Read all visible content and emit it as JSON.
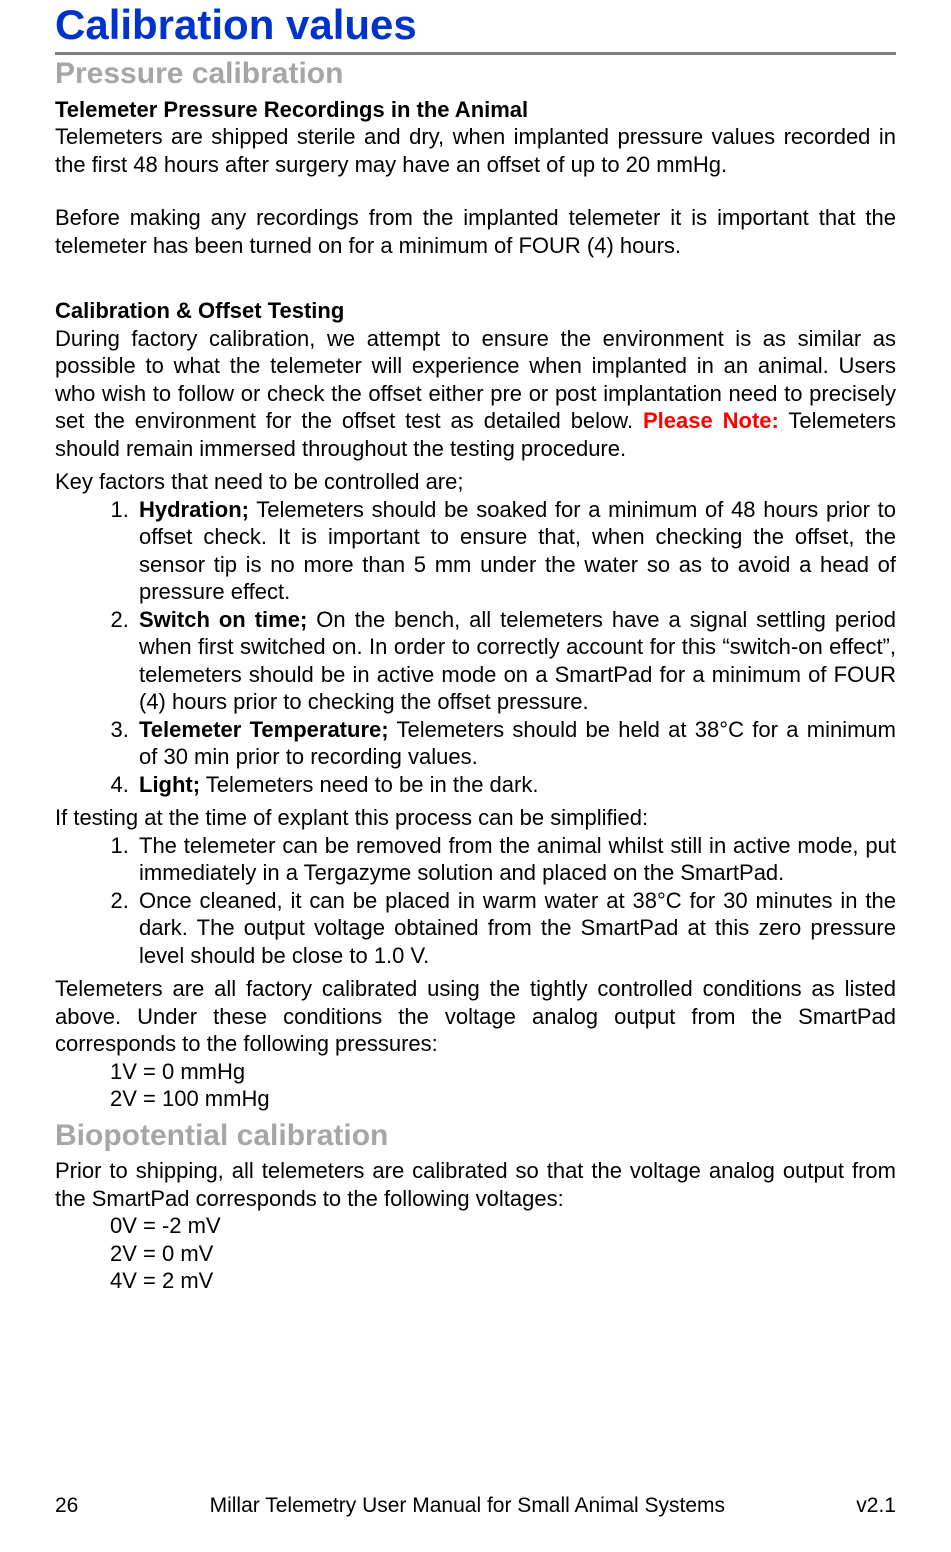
{
  "colors": {
    "title": "#0033cc",
    "subheading": "#a6a6a6",
    "rule": "#808080",
    "note": "#ff0000",
    "text": "#000000",
    "background": "#ffffff"
  },
  "typography": {
    "family": "Arial",
    "h1_size_pt": 32,
    "h2_size_pt": 22,
    "h3_size_pt": 16,
    "body_size_pt": 16
  },
  "h1": "Calibration values",
  "sections": {
    "pressure": {
      "heading": "Pressure calibration",
      "sub1_title": "Telemeter Pressure Recordings in the Animal",
      "sub1_p1": "Telemeters are shipped sterile and dry, when implanted pressure values recorded in the first 48 hours after surgery may have an offset of up to 20 mmHg.",
      "sub1_p2": "Before making any recordings from the implanted telemeter it is important that the telemeter has been turned on for a minimum of FOUR (4) hours.",
      "sub2_title": "Calibration & Offset Testing",
      "sub2_p1a": "During factory calibration, we attempt to ensure the environment is as similar as possible to what the telemeter will experience when implanted in an animal.  Users who wish to follow or check the offset either pre or post implantation need to precisely set the environment for the offset test as detailed below.  ",
      "sub2_note": "Please Note:",
      "sub2_p1b": " Telemeters should remain immersed throughout the testing procedure.",
      "key_factors_intro": "Key factors that need to be controlled are;",
      "key_factors": [
        {
          "label": "Hydration;",
          "text": "  Telemeters should be soaked for a minimum of 48 hours prior to offset check.  It is important to ensure that, when checking the offset, the sensor tip is no more than 5 mm under the water so as to avoid a head of pressure effect."
        },
        {
          "label": "Switch on time;",
          "text": "  On the bench, all telemeters have a signal settling period when first switched on.  In order to correctly account for this “switch-on effect”, telemeters should be in active mode on a SmartPad for a minimum of FOUR (4) hours prior to checking the offset pressure."
        },
        {
          "label": "Telemeter Temperature;",
          "text": "  Telemeters should be held at 38°C for a minimum of 30 min prior to recording values."
        },
        {
          "label": "Light;",
          "text": "  Telemeters need to be in the dark."
        }
      ],
      "explant_intro": "If testing at the time of explant this process can be simplified:",
      "explant_steps": [
        "The telemeter can be removed from the animal whilst still in active mode, put immediately in a Tergazyme solution and placed on the SmartPad.",
        "Once cleaned, it can be placed in warm water at 38°C for 30 minutes in the dark.  The output voltage obtained from the SmartPad at this zero pressure level should be close to 1.0 V."
      ],
      "factory_p": "Telemeters are all factory calibrated using the tightly controlled conditions as listed above.  Under these conditions the voltage analog output from the SmartPad corresponds to the following pressures:",
      "voltage_map": [
        "1V = 0 mmHg",
        "2V = 100 mmHg"
      ]
    },
    "bio": {
      "heading": "Biopotential calibration",
      "p1": "Prior to shipping, all telemeters are calibrated so that the voltage analog output from the SmartPad corresponds to the following voltages:",
      "voltage_map": [
        "0V = -2 mV",
        "2V = 0 mV",
        "4V = 2 mV"
      ]
    }
  },
  "footer": {
    "page": "26",
    "center": "Millar Telemetry User Manual for Small Animal Systems",
    "version": "v2.1"
  }
}
